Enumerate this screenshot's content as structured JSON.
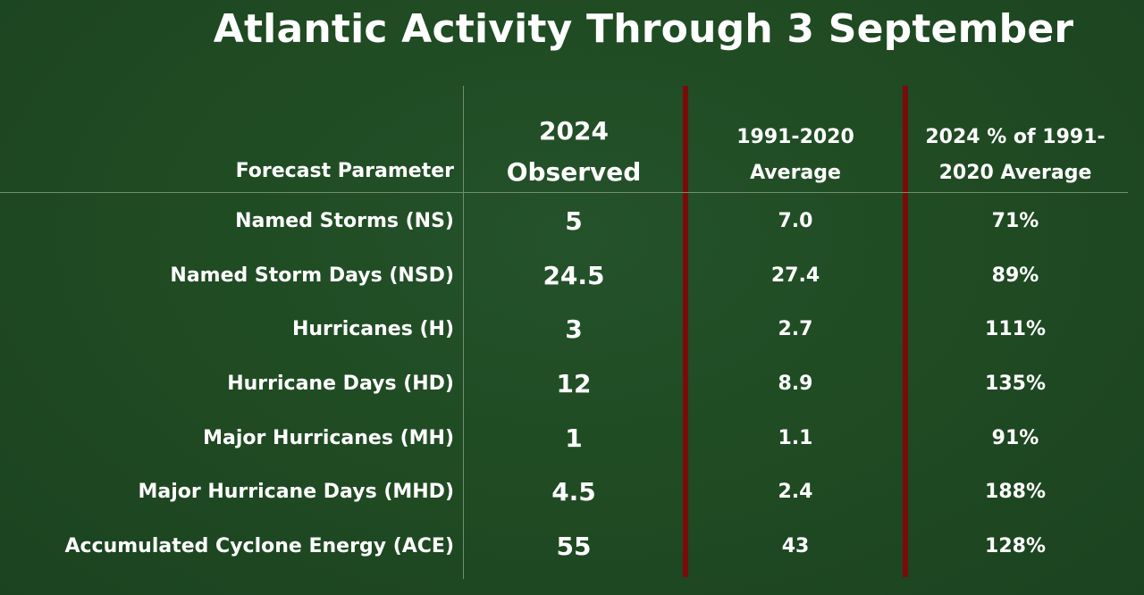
{
  "title": "Atlantic Activity Through 3 September",
  "columns": {
    "parameter": "Forecast Parameter",
    "observed": [
      "2024",
      "Observed"
    ],
    "average": [
      "1991-2020",
      "Average"
    ],
    "percent": [
      "2024 % of 1991-",
      "2020 Average"
    ]
  },
  "rows": [
    {
      "parameter": "Named Storms (NS)",
      "observed": "5",
      "average": "7.0",
      "percent": "71%"
    },
    {
      "parameter": "Named Storm Days (NSD)",
      "observed": "24.5",
      "average": "27.4",
      "percent": "89%"
    },
    {
      "parameter": "Hurricanes (H)",
      "observed": "3",
      "average": "2.7",
      "percent": "111%"
    },
    {
      "parameter": "Hurricane Days (HD)",
      "observed": "12",
      "average": "8.9",
      "percent": "135%"
    },
    {
      "parameter": "Major Hurricanes (MH)",
      "observed": "1",
      "average": "1.1",
      "percent": "91%"
    },
    {
      "parameter": "Major Hurricane Days (MHD)",
      "observed": "4.5",
      "average": "2.4",
      "percent": "188%"
    },
    {
      "parameter": "Accumulated Cyclone Energy (ACE)",
      "observed": "55",
      "average": "43",
      "percent": "128%"
    }
  ],
  "colors": {
    "background": "#1f4a22",
    "divider_red": "#7a0b0b",
    "divider_grey": "#6f8f6f",
    "text": "#ffffff"
  }
}
